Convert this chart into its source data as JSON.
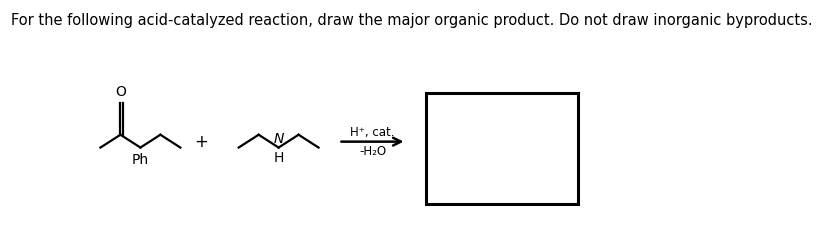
{
  "title_text": "For the following acid-catalyzed reaction, draw the major organic product. Do not draw inorganic byproducts.",
  "title_fontsize": 10.5,
  "background_color": "#ffffff",
  "text_color": "#000000",
  "reaction_conditions_line1": "H⁺, cat.",
  "reaction_conditions_line2": "-H₂O",
  "plus_sign": "+",
  "ph_label": "Ph",
  "h_label": "H",
  "n_label": "N",
  "o_label": "O",
  "fig_width": 8.24,
  "fig_height": 2.25,
  "dpi": 100
}
